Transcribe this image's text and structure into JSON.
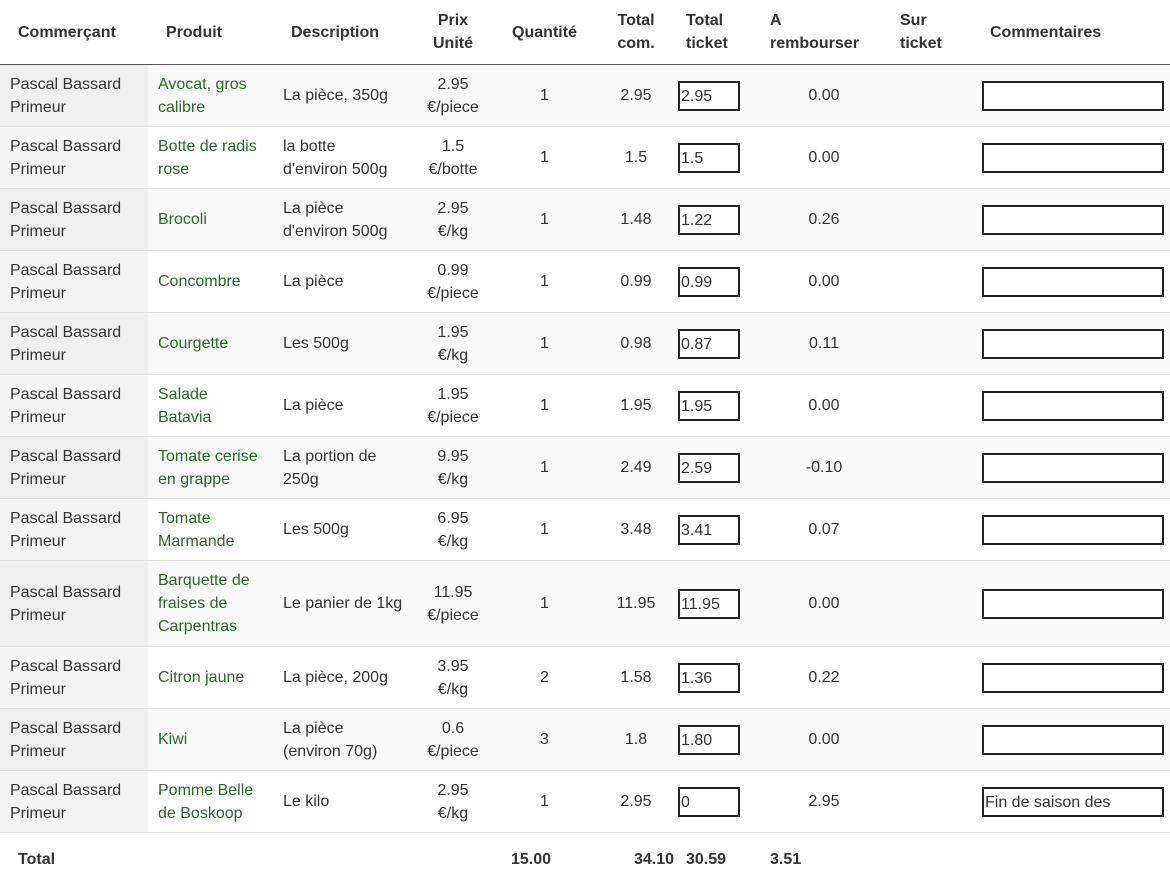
{
  "headers": {
    "merchant": "Commerçant",
    "product": "Produit",
    "description": "Description",
    "unit_price": "Prix Unité",
    "quantity": "Quantité",
    "total_com": "Total com.",
    "total_ticket": "Total ticket",
    "refund": "A rembourser",
    "on_ticket": "Sur ticket",
    "comments": "Commentaires"
  },
  "rows": [
    {
      "merchant": "Pascal Bassard Primeur",
      "product": "Avocat, gros calibre",
      "description": "La pièce, 350g",
      "unit_price": "2.95 €/piece",
      "quantity": "1",
      "total_com": "2.95",
      "total_ticket": "2.95",
      "refund": "0.00",
      "comment": ""
    },
    {
      "merchant": "Pascal Bassard Primeur",
      "product": "Botte de radis rose",
      "description": "la botte d'environ 500g",
      "unit_price": "1.5 €/botte",
      "quantity": "1",
      "total_com": "1.5",
      "total_ticket": "1.5",
      "refund": "0.00",
      "comment": ""
    },
    {
      "merchant": "Pascal Bassard Primeur",
      "product": "Brocoli",
      "description": "La pièce d'environ 500g",
      "unit_price": "2.95 €/kg",
      "quantity": "1",
      "total_com": "1.48",
      "total_ticket": "1.22",
      "refund": "0.26",
      "comment": ""
    },
    {
      "merchant": "Pascal Bassard Primeur",
      "product": "Concombre",
      "description": "La pièce",
      "unit_price": "0.99 €/piece",
      "quantity": "1",
      "total_com": "0.99",
      "total_ticket": "0.99",
      "refund": "0.00",
      "comment": ""
    },
    {
      "merchant": "Pascal Bassard Primeur",
      "product": "Courgette",
      "description": "Les 500g",
      "unit_price": "1.95 €/kg",
      "quantity": "1",
      "total_com": "0.98",
      "total_ticket": "0.87",
      "refund": "0.11",
      "comment": ""
    },
    {
      "merchant": "Pascal Bassard Primeur",
      "product": "Salade Batavia",
      "description": "La pièce",
      "unit_price": "1.95 €/piece",
      "quantity": "1",
      "total_com": "1.95",
      "total_ticket": "1.95",
      "refund": "0.00",
      "comment": ""
    },
    {
      "merchant": "Pascal Bassard Primeur",
      "product": "Tomate cerise en grappe",
      "description": "La portion de 250g",
      "unit_price": "9.95 €/kg",
      "quantity": "1",
      "total_com": "2.49",
      "total_ticket": "2.59",
      "refund": "-0.10",
      "comment": ""
    },
    {
      "merchant": "Pascal Bassard Primeur",
      "product": "Tomate Marmande",
      "description": "Les 500g",
      "unit_price": "6.95 €/kg",
      "quantity": "1",
      "total_com": "3.48",
      "total_ticket": "3.41",
      "refund": "0.07",
      "comment": ""
    },
    {
      "merchant": "Pascal Bassard Primeur",
      "product": "Barquette de fraises de Carpentras",
      "description": "Le panier de 1kg",
      "unit_price": "11.95 €/piece",
      "quantity": "1",
      "total_com": "11.95",
      "total_ticket": "11.95",
      "refund": "0.00",
      "comment": ""
    },
    {
      "merchant": "Pascal Bassard Primeur",
      "product": "Citron jaune",
      "description": "La pièce, 200g",
      "unit_price": "3.95 €/kg",
      "quantity": "2",
      "total_com": "1.58",
      "total_ticket": "1.36",
      "refund": "0.22",
      "comment": ""
    },
    {
      "merchant": "Pascal Bassard Primeur",
      "product": "Kiwi",
      "description": "La pièce (environ 70g)",
      "unit_price": "0.6 €/piece",
      "quantity": "3",
      "total_com": "1.8",
      "total_ticket": "1.80",
      "refund": "0.00",
      "comment": ""
    },
    {
      "merchant": "Pascal Bassard Primeur",
      "product": "Pomme Belle de Boskoop",
      "description": "Le kilo",
      "unit_price": "2.95 €/kg",
      "quantity": "1",
      "total_com": "2.95",
      "total_ticket": "0",
      "refund": "2.95",
      "comment": "Fin de saison des pommes belle de"
    }
  ],
  "footer": {
    "label": "Total",
    "quantity": "15.00",
    "total_com": "34.10",
    "total_ticket": "30.59",
    "refund": "3.51"
  }
}
